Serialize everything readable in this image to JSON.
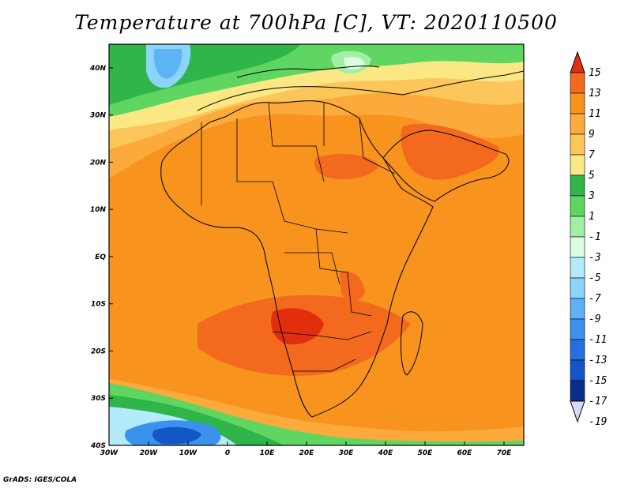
{
  "title": "Temperature at 700hPa [C], VT: 2020110500",
  "credit": "GrADS: IGES/COLA",
  "map": {
    "lon_range": [
      -30,
      75
    ],
    "lat_range": [
      -40,
      45
    ],
    "lon_ticks": [
      {
        "value": -30,
        "label": "30W"
      },
      {
        "value": -20,
        "label": "20W"
      },
      {
        "value": -10,
        "label": "10W"
      },
      {
        "value": 0,
        "label": "0"
      },
      {
        "value": 10,
        "label": "10E"
      },
      {
        "value": 20,
        "label": "20E"
      },
      {
        "value": 30,
        "label": "30E"
      },
      {
        "value": 40,
        "label": "40E"
      },
      {
        "value": 50,
        "label": "50E"
      },
      {
        "value": 60,
        "label": "60E"
      },
      {
        "value": 70,
        "label": "70E"
      }
    ],
    "lat_ticks": [
      {
        "value": 40,
        "label": "40N"
      },
      {
        "value": 30,
        "label": "30N"
      },
      {
        "value": 20,
        "label": "20N"
      },
      {
        "value": 10,
        "label": "10N"
      },
      {
        "value": 0,
        "label": "EQ"
      },
      {
        "value": -10,
        "label": "10S"
      },
      {
        "value": -20,
        "label": "20S"
      },
      {
        "value": -30,
        "label": "30S"
      },
      {
        "value": -40,
        "label": "40S"
      }
    ]
  },
  "colorbar": {
    "levels": [
      "15",
      "13",
      "11",
      "9",
      "7",
      "5",
      "3",
      "1",
      "-1",
      "-3",
      "-5",
      "-7",
      "-9",
      "-11",
      "-13",
      "-15",
      "-17",
      "-19"
    ],
    "colors": [
      "#e22d0e",
      "#f36a1e",
      "#f8931e",
      "#fbaa3b",
      "#fdc65a",
      "#fbe884",
      "#2fb54a",
      "#5fd562",
      "#9ff0a5",
      "#dcfde2",
      "#b3ebfb",
      "#8bd4fa",
      "#5db3f5",
      "#3a91ee",
      "#2470dd",
      "#1456c6",
      "#0a2f8a",
      "#d8d8fb"
    ]
  }
}
